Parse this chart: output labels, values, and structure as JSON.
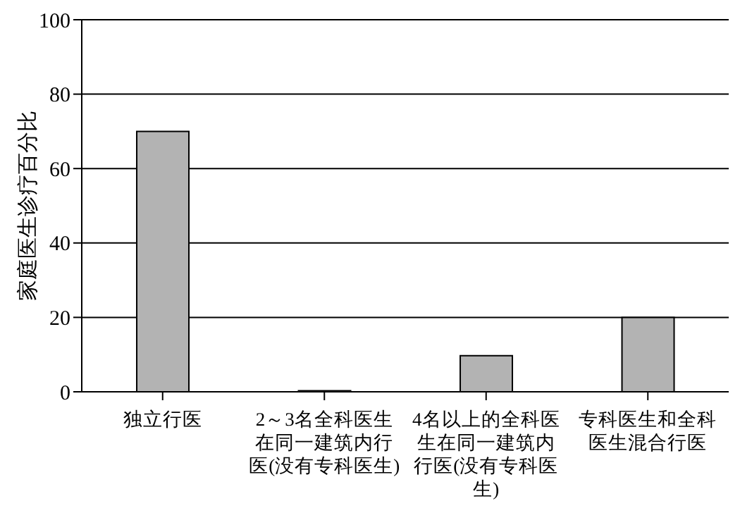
{
  "chart_data": {
    "type": "bar",
    "ylabel": "家庭医生诊疗百分比",
    "categories": [
      "独立行医",
      "2～3名全科医生在同一建筑内行医(没有专科医生)",
      "4名以上的全科医生在同一建筑内行医(没有专科医生)",
      "专科医生和全科医生混合行医"
    ],
    "values": [
      70,
      0.3,
      9.7,
      20
    ],
    "color": "#b3b3b3",
    "ylim": [
      0,
      100
    ],
    "yticks": [
      0,
      20,
      40,
      60,
      80,
      100
    ],
    "grid": "y",
    "legend": false
  }
}
